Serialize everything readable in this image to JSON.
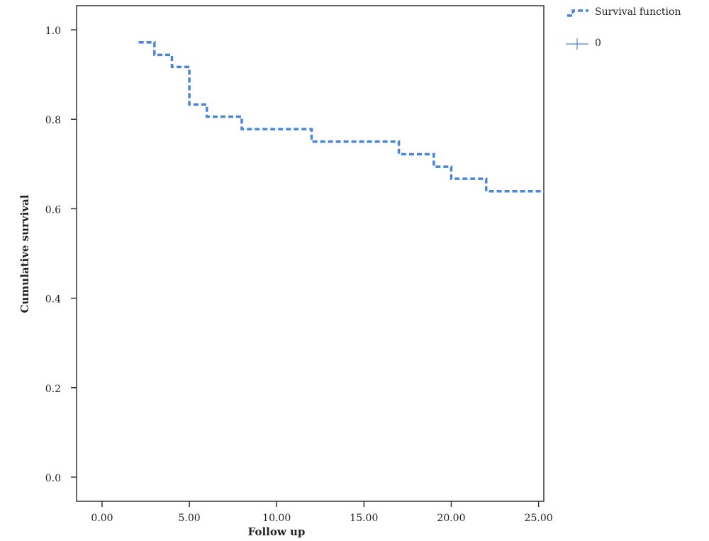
{
  "chart_data": {
    "type": "step",
    "x_label": "Follow up",
    "y_label": "Cumulative survival",
    "x": [
      2.1,
      3,
      4,
      5,
      6,
      8,
      12,
      17,
      19,
      20,
      22,
      25.3
    ],
    "series": [
      {
        "name": "Survival function",
        "color": "#4a86d8",
        "values": [
          0.972,
          0.944,
          0.917,
          0.833,
          0.806,
          0.778,
          0.75,
          0.722,
          0.694,
          0.667,
          0.639,
          0.639
        ]
      }
    ],
    "censored_label": "0",
    "xlim": [
      -1.46,
      25.3
    ],
    "ylim": [
      -0.054,
      1.054
    ],
    "xticks": [
      {
        "value": 0,
        "label": "0.00"
      },
      {
        "value": 5,
        "label": "5.00"
      },
      {
        "value": 10,
        "label": "10.00"
      },
      {
        "value": 15,
        "label": "15.00"
      },
      {
        "value": 20,
        "label": "20.00"
      },
      {
        "value": 25,
        "label": "25.00"
      }
    ],
    "yticks": [
      {
        "value": 0,
        "label": "0.0"
      },
      0.2,
      0.4,
      0.6,
      0.8,
      {
        "value": 1,
        "label": "1.0"
      }
    ],
    "grid": false
  }
}
